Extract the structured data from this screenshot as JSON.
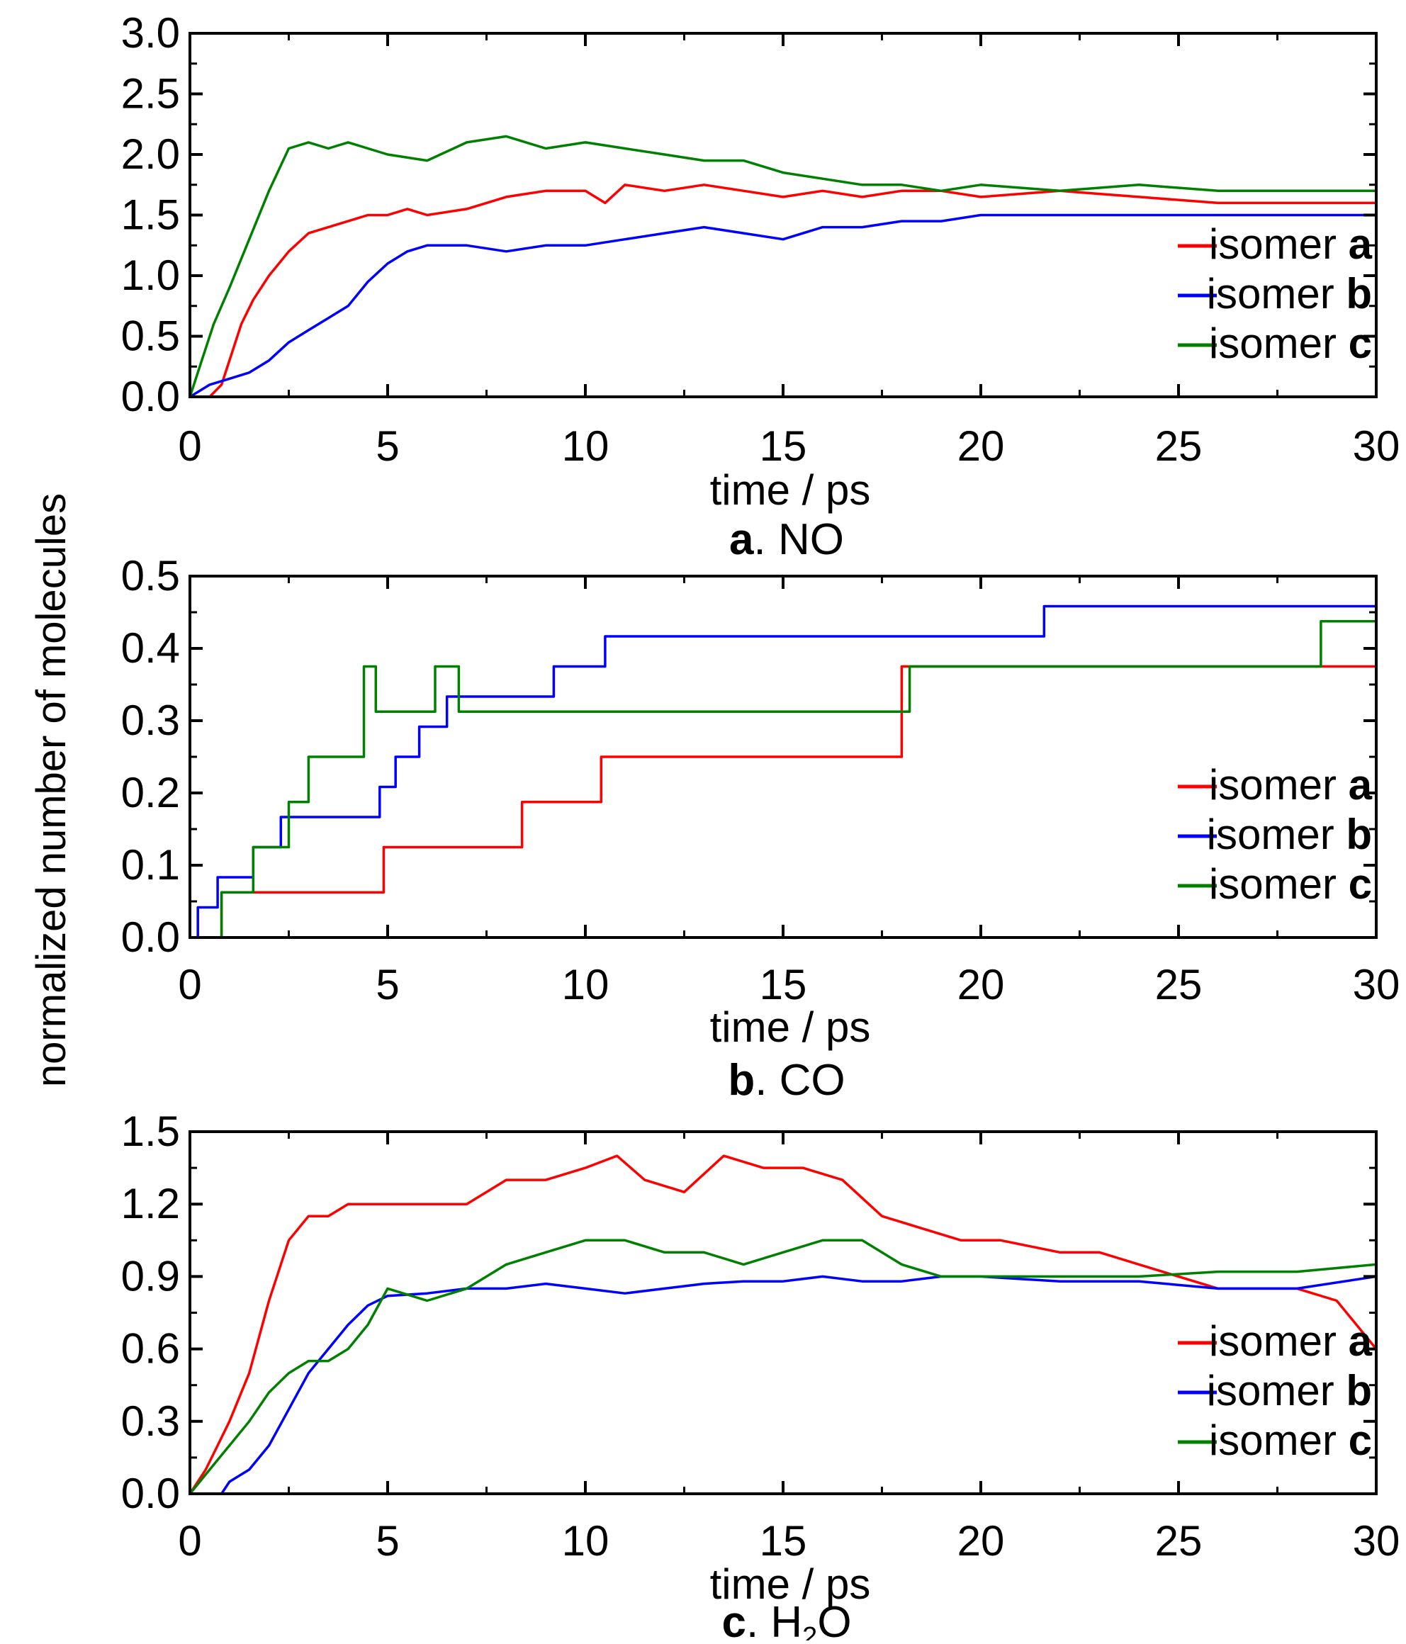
{
  "figure": {
    "ylabel": "normalized number of molecules"
  },
  "colors": {
    "isomer_a": "#ff0000",
    "isomer_b": "#0000ff",
    "isomer_c": "#008000"
  },
  "chart_data": [
    {
      "type": "line",
      "id": "no",
      "caption_letter": "a",
      "caption_text": ". NO",
      "xlabel": "time / ps",
      "xlim": [
        0,
        30
      ],
      "ylim": [
        0,
        3.0
      ],
      "xticks": [
        0,
        5,
        10,
        15,
        20,
        25,
        30
      ],
      "xtick_labels": [
        "0",
        "5",
        "10",
        "15",
        "20",
        "25",
        "30"
      ],
      "yticks": [
        0,
        0.5,
        1.0,
        1.5,
        2.0,
        2.5,
        3.0
      ],
      "ytick_labels": [
        "0.0",
        "0.5",
        "1.0",
        "1.5",
        "2.0",
        "2.5",
        "3.0"
      ],
      "legend_position": "bottom-right",
      "series": [
        {
          "name": "isomer ",
          "bold": "a",
          "color": "#ff0000",
          "x": [
            0,
            0.5,
            0.8,
            1.0,
            1.3,
            1.6,
            2.0,
            2.5,
            3.0,
            3.5,
            4.0,
            4.5,
            5.0,
            5.5,
            6.0,
            7.0,
            8.0,
            9.0,
            10.0,
            10.5,
            11.0,
            12.0,
            13.0,
            14.0,
            15.0,
            16.0,
            17.0,
            18.0,
            19.0,
            20.0,
            22.0,
            24.0,
            26.0,
            28.0,
            30.0
          ],
          "y": [
            0,
            0,
            0.1,
            0.3,
            0.6,
            0.8,
            1.0,
            1.2,
            1.35,
            1.4,
            1.45,
            1.5,
            1.5,
            1.55,
            1.5,
            1.55,
            1.65,
            1.7,
            1.7,
            1.6,
            1.75,
            1.7,
            1.75,
            1.7,
            1.65,
            1.7,
            1.65,
            1.7,
            1.7,
            1.65,
            1.7,
            1.65,
            1.6,
            1.6,
            1.6
          ]
        },
        {
          "name": "isomer ",
          "bold": "b",
          "color": "#0000ff",
          "x": [
            0,
            0.5,
            1.0,
            1.5,
            2.0,
            2.5,
            3.0,
            3.5,
            4.0,
            4.5,
            5.0,
            5.5,
            6.0,
            7.0,
            8.0,
            9.0,
            10.0,
            11.0,
            12.0,
            13.0,
            14.0,
            15.0,
            16.0,
            17.0,
            18.0,
            19.0,
            20.0,
            22.0,
            24.0,
            26.0,
            28.0,
            30.0
          ],
          "y": [
            0,
            0.1,
            0.15,
            0.2,
            0.3,
            0.45,
            0.55,
            0.65,
            0.75,
            0.95,
            1.1,
            1.2,
            1.25,
            1.25,
            1.2,
            1.25,
            1.25,
            1.3,
            1.35,
            1.4,
            1.35,
            1.3,
            1.4,
            1.4,
            1.45,
            1.45,
            1.5,
            1.5,
            1.5,
            1.5,
            1.5,
            1.5
          ]
        },
        {
          "name": "isomer ",
          "bold": "c",
          "color": "#008000",
          "x": [
            0,
            0.3,
            0.6,
            1.0,
            1.5,
            2.0,
            2.5,
            3.0,
            3.5,
            4.0,
            5.0,
            6.0,
            7.0,
            8.0,
            9.0,
            10.0,
            11.0,
            12.0,
            13.0,
            14.0,
            15.0,
            16.0,
            17.0,
            18.0,
            19.0,
            20.0,
            22.0,
            24.0,
            26.0,
            28.0,
            30.0
          ],
          "y": [
            0,
            0.3,
            0.6,
            0.9,
            1.3,
            1.7,
            2.05,
            2.1,
            2.05,
            2.1,
            2.0,
            1.95,
            2.1,
            2.15,
            2.05,
            2.1,
            2.05,
            2.0,
            1.95,
            1.95,
            1.85,
            1.8,
            1.75,
            1.75,
            1.7,
            1.75,
            1.7,
            1.75,
            1.7,
            1.7,
            1.7
          ]
        }
      ]
    },
    {
      "type": "line",
      "id": "co",
      "caption_letter": "b",
      "caption_text": ". CO",
      "xlabel": "time / ps",
      "xlim": [
        0,
        30
      ],
      "ylim": [
        0,
        0.5
      ],
      "xticks": [
        0,
        5,
        10,
        15,
        20,
        25,
        30
      ],
      "xtick_labels": [
        "0",
        "5",
        "10",
        "15",
        "20",
        "25",
        "30"
      ],
      "yticks": [
        0,
        0.1,
        0.2,
        0.3,
        0.4,
        0.5
      ],
      "ytick_labels": [
        "0.0",
        "0.1",
        "0.2",
        "0.3",
        "0.4",
        "0.5"
      ],
      "legend_position": "bottom-right",
      "series": [
        {
          "name": "isomer ",
          "bold": "a",
          "color": "#ff0000",
          "x": [
            0,
            0.8,
            0.8,
            4.9,
            4.9,
            8.4,
            8.4,
            10.4,
            10.4,
            18.0,
            18.0,
            30.0
          ],
          "y": [
            0,
            0,
            0.0625,
            0.0625,
            0.125,
            0.125,
            0.1875,
            0.1875,
            0.25,
            0.25,
            0.375,
            0.375
          ],
          "step": true
        },
        {
          "name": "isomer ",
          "bold": "b",
          "color": "#0000ff",
          "x": [
            0,
            0.2,
            0.2,
            0.7,
            0.7,
            1.6,
            1.6,
            2.3,
            2.3,
            4.8,
            4.8,
            5.2,
            5.2,
            5.8,
            5.8,
            6.5,
            6.5,
            9.2,
            9.2,
            10.5,
            10.5,
            18.2,
            18.2,
            21.6,
            21.6,
            30.0
          ],
          "y": [
            0,
            0,
            0.0417,
            0.0417,
            0.0833,
            0.0833,
            0.125,
            0.125,
            0.1667,
            0.1667,
            0.2083,
            0.2083,
            0.25,
            0.25,
            0.2917,
            0.2917,
            0.3333,
            0.3333,
            0.375,
            0.375,
            0.4167,
            0.4167,
            0.4167,
            0.4167,
            0.4583,
            0.4583
          ],
          "step": true
        },
        {
          "name": "isomer ",
          "bold": "c",
          "color": "#008000",
          "x": [
            0,
            0.8,
            0.8,
            1.6,
            1.6,
            2.5,
            2.5,
            3.0,
            3.0,
            4.4,
            4.4,
            4.7,
            4.7,
            6.2,
            6.2,
            6.8,
            6.8,
            18.2,
            18.2,
            28.6,
            28.6,
            30.0
          ],
          "y": [
            0,
            0,
            0.0625,
            0.0625,
            0.125,
            0.125,
            0.1875,
            0.1875,
            0.25,
            0.25,
            0.375,
            0.375,
            0.3125,
            0.3125,
            0.375,
            0.375,
            0.3125,
            0.3125,
            0.375,
            0.375,
            0.4375,
            0.4375
          ],
          "step": true
        }
      ]
    },
    {
      "type": "line",
      "id": "h2o",
      "caption_letter": "c",
      "caption_text": ". H",
      "caption_sub": "2",
      "caption_tail": "O",
      "xlabel": "time / ps",
      "xlim": [
        0,
        30
      ],
      "ylim": [
        0,
        1.5
      ],
      "xticks": [
        0,
        5,
        10,
        15,
        20,
        25,
        30
      ],
      "xtick_labels": [
        "0",
        "5",
        "10",
        "15",
        "20",
        "25",
        "30"
      ],
      "yticks": [
        0,
        0.3,
        0.6,
        0.9,
        1.2,
        1.5
      ],
      "ytick_labels": [
        "0.0",
        "0.3",
        "0.6",
        "0.9",
        "1.2",
        "1.5"
      ],
      "legend_position": "bottom-right",
      "series": [
        {
          "name": "isomer ",
          "bold": "a",
          "color": "#ff0000",
          "x": [
            0,
            0.4,
            0.7,
            1.0,
            1.5,
            2.0,
            2.5,
            3.0,
            3.5,
            4.0,
            5.0,
            6.0,
            7.0,
            8.0,
            9.0,
            10.0,
            10.8,
            11.5,
            12.5,
            13.5,
            14.5,
            15.5,
            16.5,
            17.5,
            18.5,
            19.5,
            20.5,
            22.0,
            23.0,
            24.0,
            25.0,
            26.0,
            27.0,
            28.0,
            29.0,
            29.5,
            30.0
          ],
          "y": [
            0,
            0.1,
            0.2,
            0.3,
            0.5,
            0.8,
            1.05,
            1.15,
            1.15,
            1.2,
            1.2,
            1.2,
            1.2,
            1.3,
            1.3,
            1.35,
            1.4,
            1.3,
            1.25,
            1.4,
            1.35,
            1.35,
            1.3,
            1.15,
            1.1,
            1.05,
            1.05,
            1.0,
            1.0,
            0.95,
            0.9,
            0.85,
            0.85,
            0.85,
            0.8,
            0.7,
            0.6
          ]
        },
        {
          "name": "isomer ",
          "bold": "b",
          "color": "#0000ff",
          "x": [
            0,
            0.8,
            1.0,
            1.5,
            2.0,
            2.5,
            3.0,
            3.5,
            4.0,
            4.5,
            5.0,
            6.0,
            7.0,
            8.0,
            9.0,
            10.0,
            11.0,
            12.0,
            13.0,
            14.0,
            15.0,
            16.0,
            17.0,
            18.0,
            19.0,
            20.0,
            22.0,
            24.0,
            26.0,
            28.0,
            30.0
          ],
          "y": [
            0,
            0,
            0.05,
            0.1,
            0.2,
            0.35,
            0.5,
            0.6,
            0.7,
            0.78,
            0.82,
            0.83,
            0.85,
            0.85,
            0.87,
            0.85,
            0.83,
            0.85,
            0.87,
            0.88,
            0.88,
            0.9,
            0.88,
            0.88,
            0.9,
            0.9,
            0.88,
            0.88,
            0.85,
            0.85,
            0.9
          ]
        },
        {
          "name": "isomer ",
          "bold": "c",
          "color": "#008000",
          "x": [
            0,
            0.5,
            1.0,
            1.5,
            2.0,
            2.5,
            3.0,
            3.5,
            4.0,
            4.5,
            5.0,
            6.0,
            7.0,
            8.0,
            9.0,
            10.0,
            11.0,
            12.0,
            13.0,
            14.0,
            15.0,
            16.0,
            17.0,
            18.0,
            19.0,
            20.0,
            22.0,
            24.0,
            26.0,
            28.0,
            30.0
          ],
          "y": [
            0,
            0.1,
            0.2,
            0.3,
            0.42,
            0.5,
            0.55,
            0.55,
            0.6,
            0.7,
            0.85,
            0.8,
            0.85,
            0.95,
            1.0,
            1.05,
            1.05,
            1.0,
            1.0,
            0.95,
            1.0,
            1.05,
            1.05,
            0.95,
            0.9,
            0.9,
            0.9,
            0.9,
            0.92,
            0.92,
            0.95
          ]
        }
      ]
    }
  ]
}
